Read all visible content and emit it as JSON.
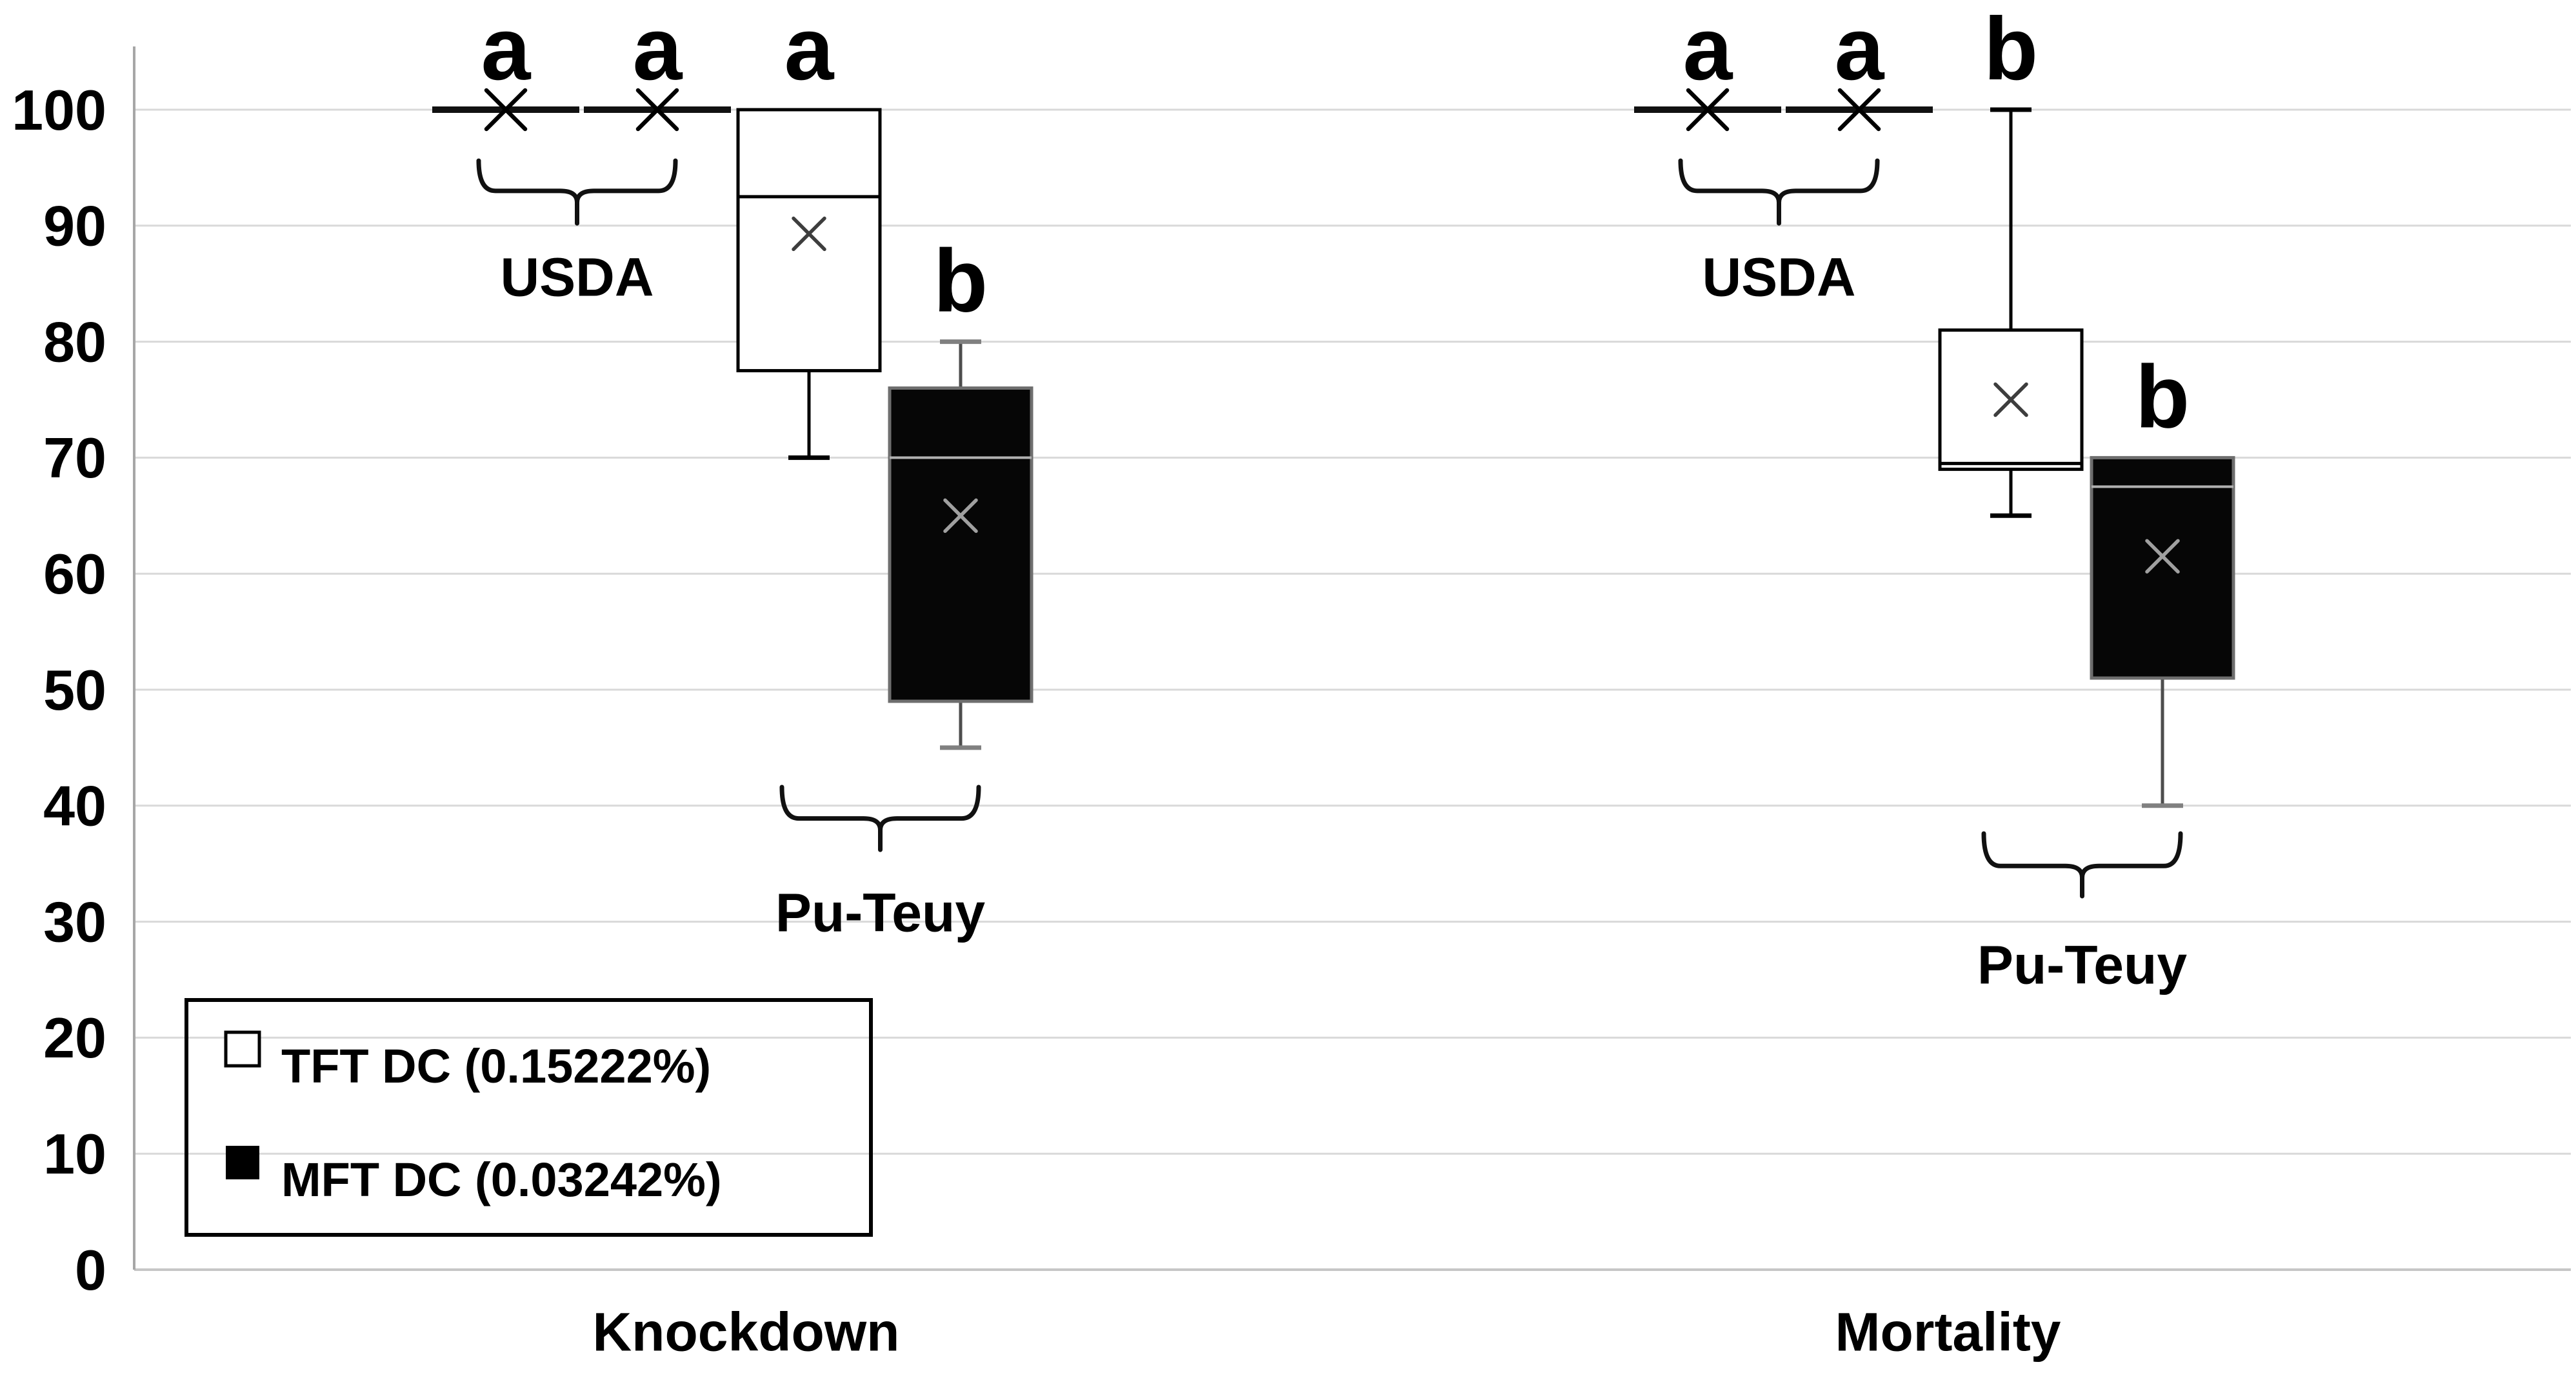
{
  "chart_data": {
    "type": "boxplot",
    "title": "",
    "xlabel": "",
    "ylabel": "",
    "ylim": [
      0,
      100
    ],
    "yticks": [
      0,
      10,
      20,
      30,
      40,
      50,
      60,
      70,
      80,
      90,
      100
    ],
    "grid": "horizontal",
    "legend_position": "bottom-left",
    "categories": [
      "Knockdown",
      "Mortality"
    ],
    "legend": [
      {
        "label": "TFT DC (0.15222%)",
        "swatch": "white"
      },
      {
        "label": "MFT DC (0.03242%)",
        "swatch": "black"
      }
    ],
    "groups": [
      {
        "label": "Knockdown",
        "boxes": [
          {
            "treatment": "TFT DC (0.15222%)",
            "strain": "USDA",
            "fill": "white",
            "min": 100,
            "q1": 100,
            "median": 100,
            "q3": 100,
            "max": 100,
            "mean": 100,
            "letter": "a"
          },
          {
            "treatment": "MFT DC (0.03242%)",
            "strain": "USDA",
            "fill": "black",
            "min": 100,
            "q1": 100,
            "median": 100,
            "q3": 100,
            "max": 100,
            "mean": 100,
            "letter": "a"
          },
          {
            "treatment": "TFT DC (0.15222%)",
            "strain": "Pu-Teuy",
            "fill": "white",
            "min": 70,
            "q1": 77.5,
            "median": 92.5,
            "q3": 100,
            "max": 100,
            "mean": 89.3,
            "letter": "a"
          },
          {
            "treatment": "MFT DC (0.03242%)",
            "strain": "Pu-Teuy",
            "fill": "black",
            "min": 45,
            "q1": 49,
            "median": 70,
            "q3": 76,
            "max": 80,
            "mean": 65,
            "letter": "b"
          }
        ],
        "strain_brackets": [
          {
            "label": "USDA",
            "from_slot": 0,
            "to_slot": 1,
            "arm_top": 95.6,
            "rail": 93.0,
            "tail_end": 90.2,
            "label_y": 85.6
          },
          {
            "label": "Pu-Teuy",
            "from_slot": 2,
            "to_slot": 3,
            "arm_top": 41.6,
            "rail": 38.9,
            "tail_end": 36.2,
            "label_y": 30.8
          }
        ]
      },
      {
        "label": "Mortality",
        "boxes": [
          {
            "treatment": "TFT DC (0.15222%)",
            "strain": "USDA",
            "fill": "white",
            "min": 100,
            "q1": 100,
            "median": 100,
            "q3": 100,
            "max": 100,
            "mean": 100,
            "letter": "a"
          },
          {
            "treatment": "MFT DC (0.03242%)",
            "strain": "USDA",
            "fill": "black",
            "min": 100,
            "q1": 100,
            "median": 100,
            "q3": 100,
            "max": 100,
            "mean": 100,
            "letter": "a"
          },
          {
            "treatment": "TFT DC (0.15222%)",
            "strain": "Pu-Teuy",
            "fill": "white",
            "min": 65,
            "q1": 69,
            "median": 69.5,
            "q3": 81,
            "max": 100,
            "mean": 75,
            "letter": "b"
          },
          {
            "treatment": "MFT DC (0.03242%)",
            "strain": "Pu-Teuy",
            "fill": "black",
            "min": 40,
            "q1": 51,
            "median": 67.5,
            "q3": 70,
            "max": 70,
            "mean": 61.5,
            "letter": "b"
          }
        ],
        "strain_brackets": [
          {
            "label": "USDA",
            "from_slot": 0,
            "to_slot": 1,
            "arm_top": 95.6,
            "rail": 93.0,
            "tail_end": 90.2,
            "label_y": 85.6
          },
          {
            "label": "Pu-Teuy",
            "from_slot": 2,
            "to_slot": 3,
            "arm_top": 37.6,
            "rail": 34.8,
            "tail_end": 32.2,
            "label_y": 26.3
          }
        ]
      }
    ],
    "colors": {
      "background": "#ffffff",
      "gridline": "#d9d9d9",
      "zero_axis": "#c6c6c6",
      "y_axis": "#a6a6a6",
      "text": "#000000",
      "white_box_fill": "#ffffff",
      "white_box_border": "#000000",
      "white_box_median": "#000000",
      "white_box_whisker": "#000000",
      "white_box_mean": "#3d3d3d",
      "black_box_fill": "#060606",
      "black_box_border": "#6e6e6e",
      "black_box_median": "#b0b0b0",
      "black_box_whisker": "#4d4d4d",
      "black_box_cap": "#808080",
      "black_box_mean": "#a0a0a0",
      "flat_line": "#111111",
      "flat_mean": "#000000",
      "bracket": "#111111"
    }
  }
}
